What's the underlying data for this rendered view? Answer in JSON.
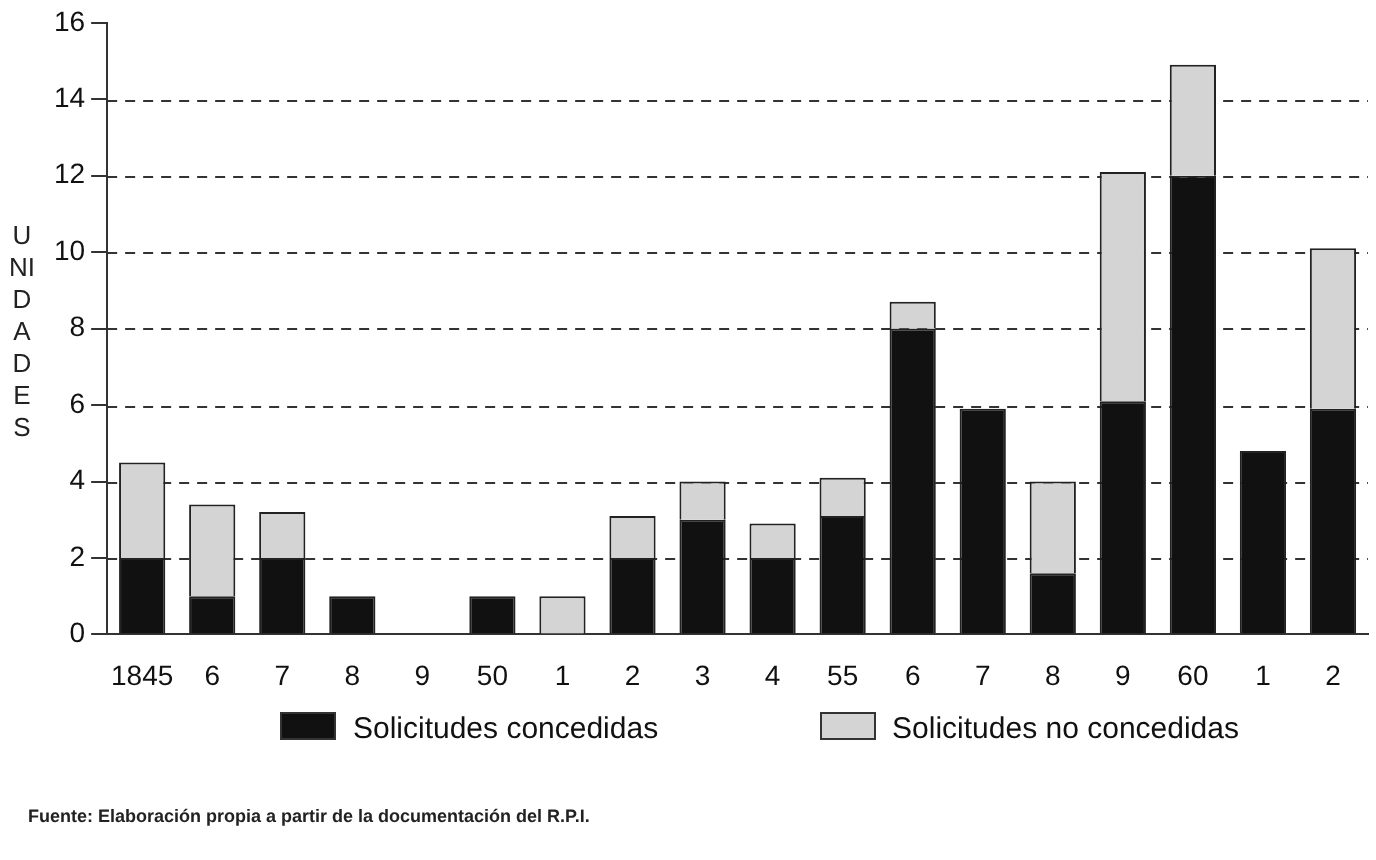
{
  "chart_data": {
    "type": "bar",
    "stacked": true,
    "ylabel": "UNIDADES",
    "categories": [
      "1845",
      "6",
      "7",
      "8",
      "9",
      "50",
      "1",
      "2",
      "3",
      "4",
      "55",
      "6",
      "7",
      "8",
      "9",
      "60",
      "1",
      "2"
    ],
    "series": [
      {
        "name": "Solicitudes concedidas",
        "color": "#111111",
        "values": [
          2,
          1,
          2,
          1,
          0,
          1,
          0,
          2,
          3,
          2,
          3.1,
          8,
          5.9,
          1.6,
          6.1,
          12,
          4.8,
          5.9
        ]
      },
      {
        "name": "Solicitudes no concedidas",
        "color": "#d4d4d4",
        "values": [
          2.5,
          2.4,
          1.2,
          0,
          0,
          0,
          1,
          1.1,
          1,
          0.9,
          1,
          0.7,
          0,
          2.4,
          6,
          2.9,
          0,
          4.2
        ]
      }
    ],
    "ylim": [
      0,
      16
    ],
    "yticks": [
      0,
      2,
      4,
      6,
      8,
      10,
      12,
      14,
      16
    ],
    "grid": "y",
    "legend": "bottom",
    "annotations": [
      "Fuente: Elaboración propia a partir de la documentación del R.P.I."
    ]
  }
}
